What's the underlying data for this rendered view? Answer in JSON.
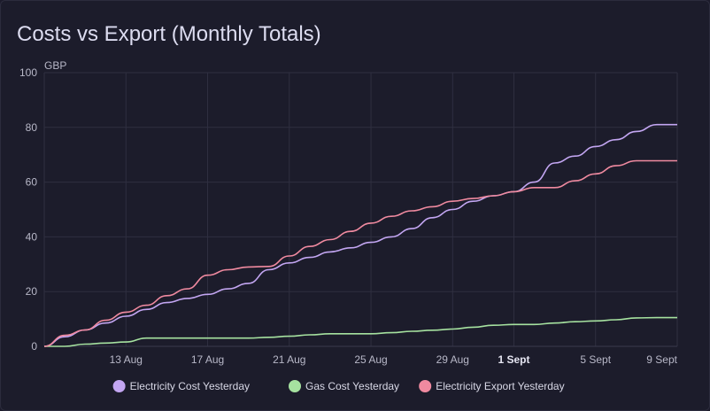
{
  "card": {
    "title": "Costs vs Export (Monthly Totals)"
  },
  "chart_data": {
    "type": "line",
    "title": "Costs vs Export (Monthly Totals)",
    "ylabel": "GBP",
    "xlabel": "",
    "ylim": [
      0,
      100
    ],
    "y_ticks": [
      0,
      20,
      40,
      60,
      80,
      100
    ],
    "x_range_days": [
      9,
      40
    ],
    "x_ticks": [
      {
        "label": "13 Aug",
        "day": 13,
        "bold": false
      },
      {
        "label": "17 Aug",
        "day": 17,
        "bold": false
      },
      {
        "label": "21 Aug",
        "day": 21,
        "bold": false
      },
      {
        "label": "25 Aug",
        "day": 25,
        "bold": false
      },
      {
        "label": "29 Aug",
        "day": 29,
        "bold": false
      },
      {
        "label": "1 Sept",
        "day": 32,
        "bold": true
      },
      {
        "label": "5 Sept",
        "day": 36,
        "bold": false
      },
      {
        "label": "9 Sept",
        "day": 40,
        "bold": false
      }
    ],
    "grid": true,
    "legend_position": "bottom",
    "series": [
      {
        "name": "Electricity Cost Yesterday",
        "color": "#c3a6f2",
        "x": [
          9,
          10,
          11,
          12,
          13,
          14,
          15,
          16,
          17,
          18,
          19,
          20,
          21,
          22,
          23,
          24,
          25,
          26,
          27,
          28,
          29,
          30,
          31,
          32,
          33,
          34,
          35,
          36,
          37,
          38,
          39,
          40
        ],
        "values": [
          0,
          3.5,
          6,
          8.5,
          11,
          13.5,
          16,
          17.5,
          19,
          21,
          23,
          28,
          30.5,
          32.5,
          34.5,
          36,
          38,
          40,
          43,
          47,
          50,
          53,
          55,
          56.5,
          60,
          67,
          69.5,
          73,
          75.5,
          78.5,
          81,
          81
        ]
      },
      {
        "name": "Gas Cost Yesterday",
        "color": "#a6e2a0",
        "x": [
          9,
          10,
          11,
          12,
          13,
          14,
          15,
          16,
          17,
          18,
          19,
          20,
          21,
          22,
          23,
          24,
          25,
          26,
          27,
          28,
          29,
          30,
          31,
          32,
          33,
          34,
          35,
          36,
          37,
          38,
          39,
          40
        ],
        "values": [
          0,
          0,
          0.8,
          1.2,
          1.6,
          3,
          3,
          3,
          3,
          3,
          3,
          3.3,
          3.7,
          4.2,
          4.6,
          4.6,
          4.6,
          5,
          5.5,
          5.9,
          6.3,
          7,
          7.7,
          8,
          8,
          8.5,
          9,
          9.3,
          9.7,
          10.4,
          10.5,
          10.5
        ]
      },
      {
        "name": "Electricity Export Yesterday",
        "color": "#f08aa0",
        "x": [
          9,
          10,
          11,
          12,
          13,
          14,
          15,
          16,
          17,
          18,
          19,
          20,
          21,
          22,
          23,
          24,
          25,
          26,
          27,
          28,
          29,
          30,
          31,
          32,
          33,
          34,
          35,
          36,
          37,
          38,
          39,
          40
        ],
        "values": [
          0,
          4,
          6,
          9.5,
          12.5,
          15,
          18.5,
          21,
          26,
          28,
          29,
          29.2,
          33,
          36.5,
          39,
          42,
          45,
          47.5,
          49.5,
          51,
          53,
          54,
          55,
          56.5,
          58,
          58,
          60.5,
          63,
          66,
          67.8,
          67.8,
          67.8
        ]
      }
    ]
  }
}
